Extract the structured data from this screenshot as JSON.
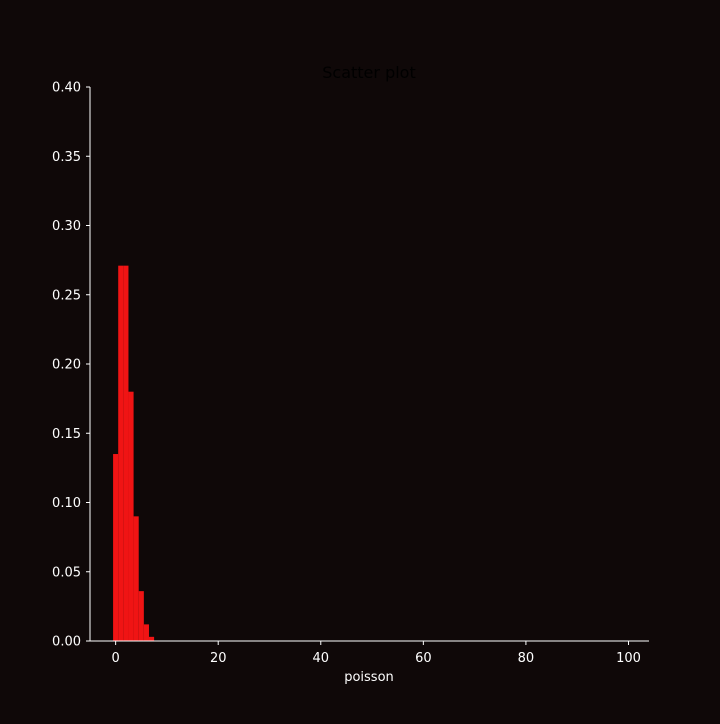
{
  "chart_data": {
    "type": "bar",
    "title": "Scatter plot",
    "xlabel": "poisson",
    "ylabel": "",
    "xlim": [
      -5.0,
      104.0
    ],
    "ylim": [
      0,
      0.4
    ],
    "xticks": [
      0,
      20,
      40,
      60,
      80,
      100
    ],
    "xtick_labels": [
      "0",
      "20",
      "40",
      "60",
      "80",
      "100"
    ],
    "yticks": [
      0.0,
      0.05,
      0.1,
      0.15,
      0.2,
      0.25,
      0.3,
      0.35,
      0.4
    ],
    "ytick_labels": [
      "0.00",
      "0.05",
      "0.10",
      "0.15",
      "0.20",
      "0.25",
      "0.30",
      "0.35",
      "0.40"
    ],
    "grid": false,
    "bar_width": 1,
    "x": [
      0,
      1,
      2,
      3,
      4,
      5,
      6,
      7
    ],
    "values": [
      0.135,
      0.271,
      0.271,
      0.18,
      0.09,
      0.036,
      0.012,
      0.003
    ],
    "colors": {
      "background": "#0f0808",
      "bar": "#f01414",
      "axis": "#ffffff",
      "text": "#ffffff",
      "title": "#000000"
    }
  }
}
